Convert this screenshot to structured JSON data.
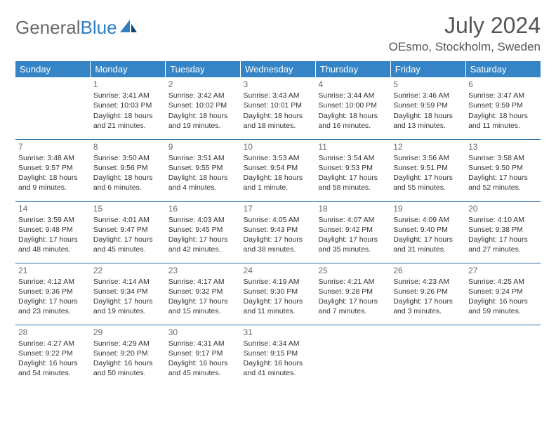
{
  "logo": {
    "part1": "General",
    "part2": "Blue"
  },
  "title": "July 2024",
  "location": "OEsmo, Stockholm, Sweden",
  "colors": {
    "header_bg": "#3585c6",
    "header_text": "#ffffff",
    "rule": "#2f6fa8",
    "logo_gray": "#6a6a6a",
    "logo_blue": "#2f7fc1",
    "body_text": "#333333"
  },
  "day_headers": [
    "Sunday",
    "Monday",
    "Tuesday",
    "Wednesday",
    "Thursday",
    "Friday",
    "Saturday"
  ],
  "weeks": [
    [
      null,
      {
        "n": "1",
        "sr": "3:41 AM",
        "ss": "10:03 PM",
        "dl": "18 hours and 21 minutes."
      },
      {
        "n": "2",
        "sr": "3:42 AM",
        "ss": "10:02 PM",
        "dl": "18 hours and 19 minutes."
      },
      {
        "n": "3",
        "sr": "3:43 AM",
        "ss": "10:01 PM",
        "dl": "18 hours and 18 minutes."
      },
      {
        "n": "4",
        "sr": "3:44 AM",
        "ss": "10:00 PM",
        "dl": "18 hours and 16 minutes."
      },
      {
        "n": "5",
        "sr": "3:46 AM",
        "ss": "9:59 PM",
        "dl": "18 hours and 13 minutes."
      },
      {
        "n": "6",
        "sr": "3:47 AM",
        "ss": "9:59 PM",
        "dl": "18 hours and 11 minutes."
      }
    ],
    [
      {
        "n": "7",
        "sr": "3:48 AM",
        "ss": "9:57 PM",
        "dl": "18 hours and 9 minutes."
      },
      {
        "n": "8",
        "sr": "3:50 AM",
        "ss": "9:56 PM",
        "dl": "18 hours and 6 minutes."
      },
      {
        "n": "9",
        "sr": "3:51 AM",
        "ss": "9:55 PM",
        "dl": "18 hours and 4 minutes."
      },
      {
        "n": "10",
        "sr": "3:53 AM",
        "ss": "9:54 PM",
        "dl": "18 hours and 1 minute."
      },
      {
        "n": "11",
        "sr": "3:54 AM",
        "ss": "9:53 PM",
        "dl": "17 hours and 58 minutes."
      },
      {
        "n": "12",
        "sr": "3:56 AM",
        "ss": "9:51 PM",
        "dl": "17 hours and 55 minutes."
      },
      {
        "n": "13",
        "sr": "3:58 AM",
        "ss": "9:50 PM",
        "dl": "17 hours and 52 minutes."
      }
    ],
    [
      {
        "n": "14",
        "sr": "3:59 AM",
        "ss": "9:48 PM",
        "dl": "17 hours and 48 minutes."
      },
      {
        "n": "15",
        "sr": "4:01 AM",
        "ss": "9:47 PM",
        "dl": "17 hours and 45 minutes."
      },
      {
        "n": "16",
        "sr": "4:03 AM",
        "ss": "9:45 PM",
        "dl": "17 hours and 42 minutes."
      },
      {
        "n": "17",
        "sr": "4:05 AM",
        "ss": "9:43 PM",
        "dl": "17 hours and 38 minutes."
      },
      {
        "n": "18",
        "sr": "4:07 AM",
        "ss": "9:42 PM",
        "dl": "17 hours and 35 minutes."
      },
      {
        "n": "19",
        "sr": "4:09 AM",
        "ss": "9:40 PM",
        "dl": "17 hours and 31 minutes."
      },
      {
        "n": "20",
        "sr": "4:10 AM",
        "ss": "9:38 PM",
        "dl": "17 hours and 27 minutes."
      }
    ],
    [
      {
        "n": "21",
        "sr": "4:12 AM",
        "ss": "9:36 PM",
        "dl": "17 hours and 23 minutes."
      },
      {
        "n": "22",
        "sr": "4:14 AM",
        "ss": "9:34 PM",
        "dl": "17 hours and 19 minutes."
      },
      {
        "n": "23",
        "sr": "4:17 AM",
        "ss": "9:32 PM",
        "dl": "17 hours and 15 minutes."
      },
      {
        "n": "24",
        "sr": "4:19 AM",
        "ss": "9:30 PM",
        "dl": "17 hours and 11 minutes."
      },
      {
        "n": "25",
        "sr": "4:21 AM",
        "ss": "9:28 PM",
        "dl": "17 hours and 7 minutes."
      },
      {
        "n": "26",
        "sr": "4:23 AM",
        "ss": "9:26 PM",
        "dl": "17 hours and 3 minutes."
      },
      {
        "n": "27",
        "sr": "4:25 AM",
        "ss": "9:24 PM",
        "dl": "16 hours and 59 minutes."
      }
    ],
    [
      {
        "n": "28",
        "sr": "4:27 AM",
        "ss": "9:22 PM",
        "dl": "16 hours and 54 minutes."
      },
      {
        "n": "29",
        "sr": "4:29 AM",
        "ss": "9:20 PM",
        "dl": "16 hours and 50 minutes."
      },
      {
        "n": "30",
        "sr": "4:31 AM",
        "ss": "9:17 PM",
        "dl": "16 hours and 45 minutes."
      },
      {
        "n": "31",
        "sr": "4:34 AM",
        "ss": "9:15 PM",
        "dl": "16 hours and 41 minutes."
      },
      null,
      null,
      null
    ]
  ],
  "labels": {
    "sunrise": "Sunrise: ",
    "sunset": "Sunset: ",
    "daylight": "Daylight: "
  }
}
